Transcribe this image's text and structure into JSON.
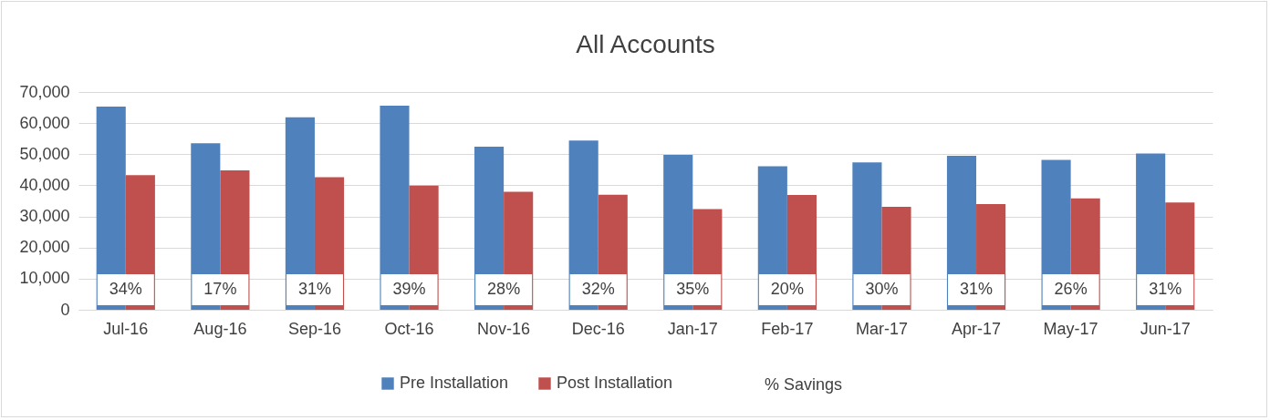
{
  "chart_data": {
    "type": "bar",
    "title": "All Accounts",
    "categories": [
      "Jul-16",
      "Aug-16",
      "Sep-16",
      "Oct-16",
      "Nov-16",
      "Dec-16",
      "Jan-17",
      "Feb-17",
      "Mar-17",
      "Apr-17",
      "May-17",
      "Jun-17"
    ],
    "series": [
      {
        "name": "Pre Installation",
        "color": "#4f81bd",
        "values": [
          65300,
          53500,
          61900,
          65600,
          52400,
          54400,
          49800,
          46100,
          47400,
          49500,
          48200,
          50200
        ]
      },
      {
        "name": "Post Installation",
        "color": "#c0504d",
        "values": [
          43300,
          44800,
          42600,
          39900,
          37900,
          37000,
          32400,
          36900,
          33100,
          34000,
          35800,
          34500
        ]
      }
    ],
    "annotations": [
      "% Savings",
      {
        "text": "34%",
        "x": "Jul-16"
      },
      {
        "text": "17%",
        "x": "Aug-16"
      },
      {
        "text": "31%",
        "x": "Sep-16"
      },
      {
        "text": "39%",
        "x": "Oct-16"
      },
      {
        "text": "28%",
        "x": "Nov-16"
      },
      {
        "text": "32%",
        "x": "Dec-16"
      },
      {
        "text": "35%",
        "x": "Jan-17"
      },
      {
        "text": "20%",
        "x": "Feb-17"
      },
      {
        "text": "30%",
        "x": "Mar-17"
      },
      {
        "text": "31%",
        "x": "Apr-17"
      },
      {
        "text": "26%",
        "x": "May-17"
      },
      {
        "text": "31%",
        "x": "Jun-17"
      }
    ],
    "ylim": [
      0,
      70000
    ],
    "yticks": [
      0,
      {
        "value": 10000,
        "label": "10,000"
      },
      {
        "value": 20000,
        "label": "20,000"
      },
      {
        "value": 30000,
        "label": "30,000"
      },
      {
        "value": 40000,
        "label": "40,000"
      },
      {
        "value": 50000,
        "label": "50,000"
      },
      {
        "value": 60000,
        "label": "60,000"
      },
      {
        "value": 70000,
        "label": "70,000"
      }
    ],
    "grid": "y",
    "legend": "bottom"
  }
}
